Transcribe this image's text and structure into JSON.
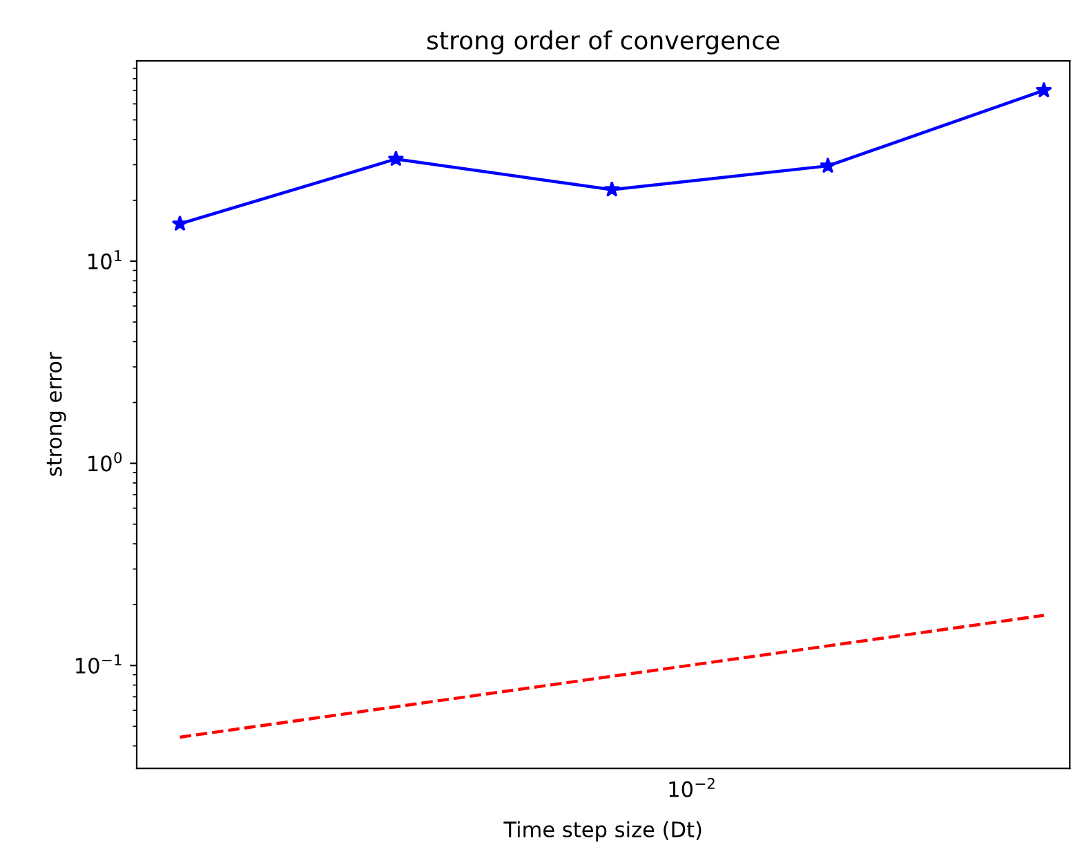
{
  "chart_data": {
    "type": "line",
    "title": "strong order of convergence",
    "xlabel": "Time step size (Dt)",
    "ylabel": "strong error",
    "log": "y",
    "grid": false,
    "ylim": [
      0.031,
      98
    ],
    "categories": [
      null,
      null,
      null,
      null,
      null
    ],
    "annotations": [
      "10$^{−2}$"
    ],
    "yticks": [
      {
        "value": 0.1,
        "label": "10$^{−1}$"
      },
      {
        "value": 1,
        "label": "10$^{0}$"
      },
      {
        "value": 10,
        "label": "10$^{1}$"
      }
    ],
    "series": [
      {
        "values": [
          15.3,
          32,
          22.6,
          29.6,
          70
        ],
        "color": "#0000ff",
        "marker": "star",
        "line_style": "solid"
      },
      {
        "values": [
          0.0442,
          0.0625,
          0.0884,
          0.125,
          0.177
        ],
        "color": "#ff0000",
        "marker": "none",
        "line_style": "dashed"
      }
    ]
  }
}
